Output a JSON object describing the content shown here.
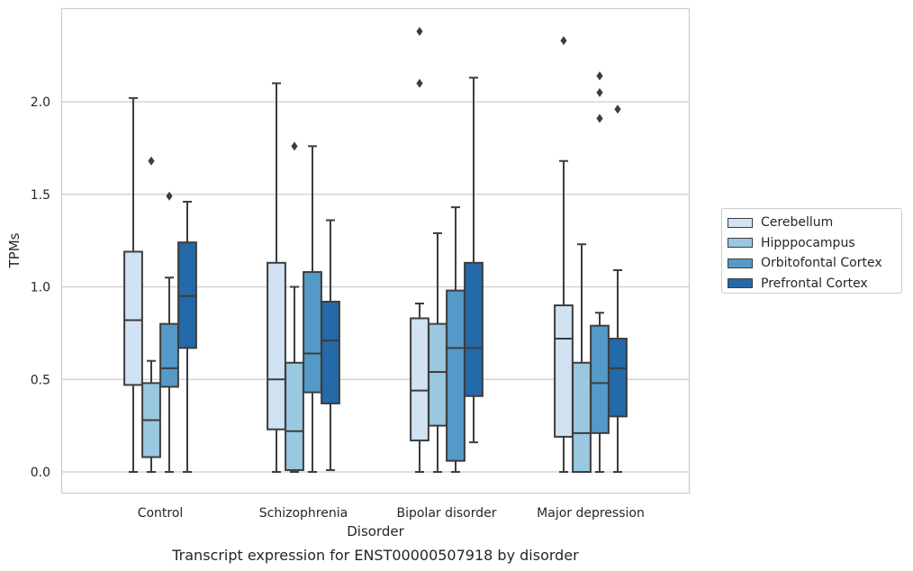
{
  "chart_data": {
    "type": "box",
    "xlabel": "Disorder",
    "ylabel": "TPMs",
    "caption": "Transcript expression for ENST00000507918 by disorder",
    "categories": [
      "Control",
      "Schizophrenia",
      "Bipolar disorder",
      "Major depression"
    ],
    "ylim": [
      -0.12,
      2.52
    ],
    "yticks": [
      0.0,
      0.5,
      1.0,
      1.5,
      2.0
    ],
    "ytick_labels": [
      "0.0",
      "0.5",
      "1.0",
      "1.5",
      "2.0"
    ],
    "grid": "horizontal",
    "legend_position": "right",
    "series": [
      {
        "name": "Cerebellum",
        "color": "#d1e2f2",
        "boxes": [
          {
            "whislo": 0.0,
            "q1": 0.47,
            "med": 0.82,
            "q3": 1.19,
            "whishi": 2.02,
            "fliers": []
          },
          {
            "whislo": 0.0,
            "q1": 0.23,
            "med": 0.5,
            "q3": 1.13,
            "whishi": 2.1,
            "fliers": []
          },
          {
            "whislo": 0.0,
            "q1": 0.17,
            "med": 0.44,
            "q3": 0.83,
            "whishi": 0.91,
            "fliers": [
              2.1,
              2.38
            ]
          },
          {
            "whislo": 0.0,
            "q1": 0.19,
            "med": 0.72,
            "q3": 0.9,
            "whishi": 1.68,
            "fliers": [
              2.33
            ]
          }
        ]
      },
      {
        "name": "Hipppocampus",
        "color": "#9ac8e0",
        "boxes": [
          {
            "whislo": 0.0,
            "q1": 0.08,
            "med": 0.28,
            "q3": 0.48,
            "whishi": 0.6,
            "fliers": [
              1.68
            ]
          },
          {
            "whislo": 0.0,
            "q1": 0.01,
            "med": 0.22,
            "q3": 0.59,
            "whishi": 1.0,
            "fliers": [
              1.76
            ]
          },
          {
            "whislo": 0.0,
            "q1": 0.25,
            "med": 0.54,
            "q3": 0.8,
            "whishi": 1.29,
            "fliers": []
          },
          {
            "whislo": 0.0,
            "q1": 0.0,
            "med": 0.21,
            "q3": 0.59,
            "whishi": 1.23,
            "fliers": []
          }
        ]
      },
      {
        "name": "Orbitofontal Cortex",
        "color": "#5599c8",
        "boxes": [
          {
            "whislo": 0.0,
            "q1": 0.46,
            "med": 0.56,
            "q3": 0.8,
            "whishi": 1.05,
            "fliers": [
              1.49
            ]
          },
          {
            "whislo": 0.0,
            "q1": 0.43,
            "med": 0.64,
            "q3": 1.08,
            "whishi": 1.76,
            "fliers": []
          },
          {
            "whislo": 0.0,
            "q1": 0.06,
            "med": 0.67,
            "q3": 0.98,
            "whishi": 1.43,
            "fliers": []
          },
          {
            "whislo": 0.0,
            "q1": 0.21,
            "med": 0.48,
            "q3": 0.79,
            "whishi": 0.86,
            "fliers": [
              1.91,
              2.05,
              2.14
            ]
          }
        ]
      },
      {
        "name": "Prefrontal Cortex",
        "color": "#2469a8",
        "boxes": [
          {
            "whislo": 0.0,
            "q1": 0.67,
            "med": 0.95,
            "q3": 1.24,
            "whishi": 1.46,
            "fliers": []
          },
          {
            "whislo": 0.01,
            "q1": 0.37,
            "med": 0.71,
            "q3": 0.92,
            "whishi": 1.36,
            "fliers": []
          },
          {
            "whislo": 0.16,
            "q1": 0.41,
            "med": 0.67,
            "q3": 1.13,
            "whishi": 2.13,
            "fliers": []
          },
          {
            "whislo": 0.0,
            "q1": 0.3,
            "med": 0.56,
            "q3": 0.72,
            "whishi": 1.09,
            "fliers": [
              1.96
            ]
          }
        ]
      }
    ]
  }
}
